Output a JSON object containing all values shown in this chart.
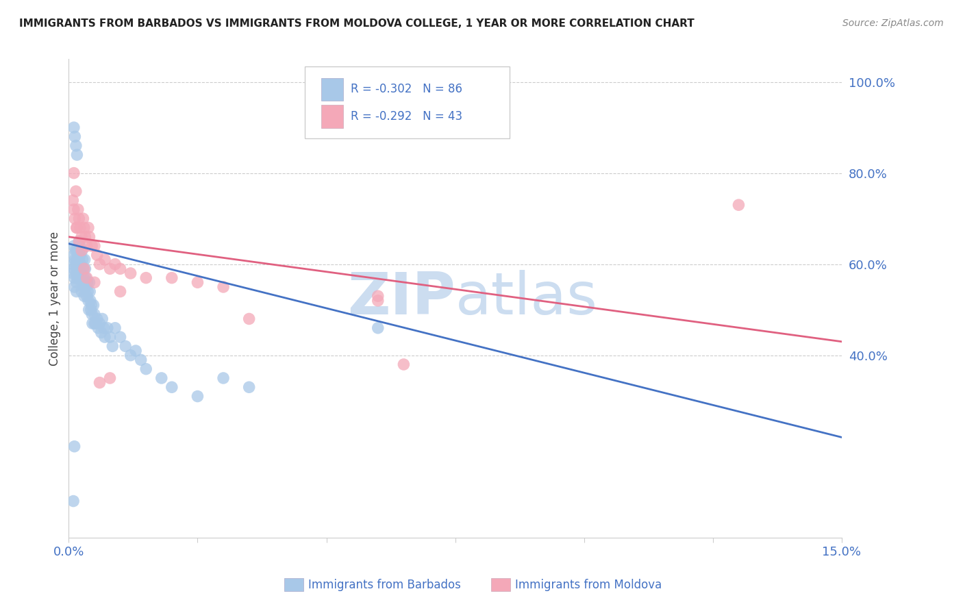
{
  "title": "IMMIGRANTS FROM BARBADOS VS IMMIGRANTS FROM MOLDOVA COLLEGE, 1 YEAR OR MORE CORRELATION CHART",
  "source": "Source: ZipAtlas.com",
  "ylabel": "College, 1 year or more",
  "right_ytick_labels": [
    "100.0%",
    "80.0%",
    "60.0%",
    "40.0%"
  ],
  "right_ytick_positions": [
    1.0,
    0.8,
    0.6,
    0.4
  ],
  "xmin": 0.0,
  "xmax": 0.15,
  "ymin": 0.0,
  "ymax": 1.05,
  "barbados_color": "#a8c8e8",
  "moldova_color": "#f4a8b8",
  "barbados_line_color": "#4472c4",
  "moldova_line_color": "#e06080",
  "watermark_zip": "ZIP",
  "watermark_atlas": "atlas",
  "watermark_color": "#d8e8f4",
  "background_color": "#ffffff",
  "grid_color": "#cccccc",
  "legend_barbados_r": "R = -0.302",
  "legend_barbados_n": "N = 86",
  "legend_moldova_r": "R = -0.292",
  "legend_moldova_n": "N = 43",
  "legend_text_color": "#4472c4",
  "title_color": "#222222",
  "source_color": "#888888",
  "ylabel_color": "#444444",
  "xtick_color": "#4472c4",
  "ytick_color": "#4472c4",
  "barbados_x": [
    0.0008,
    0.0008,
    0.001,
    0.001,
    0.001,
    0.0011,
    0.0011,
    0.0012,
    0.0013,
    0.0014,
    0.0015,
    0.0015,
    0.0015,
    0.0016,
    0.0016,
    0.0017,
    0.0017,
    0.0018,
    0.0018,
    0.0019,
    0.002,
    0.002,
    0.002,
    0.0021,
    0.0021,
    0.0022,
    0.0022,
    0.0023,
    0.0024,
    0.0025,
    0.0025,
    0.0026,
    0.0027,
    0.0028,
    0.0029,
    0.003,
    0.003,
    0.0031,
    0.0032,
    0.0033,
    0.0034,
    0.0035,
    0.0036,
    0.0037,
    0.0038,
    0.0039,
    0.004,
    0.0041,
    0.0042,
    0.0043,
    0.0044,
    0.0045,
    0.0046,
    0.0048,
    0.005,
    0.0052,
    0.0055,
    0.0057,
    0.006,
    0.0063,
    0.0065,
    0.0068,
    0.007,
    0.0075,
    0.008,
    0.0085,
    0.009,
    0.01,
    0.011,
    0.012,
    0.013,
    0.014,
    0.015,
    0.018,
    0.02,
    0.025,
    0.03,
    0.035,
    0.001,
    0.0012,
    0.0014,
    0.0016,
    0.005,
    0.06,
    0.0009,
    0.0011
  ],
  "barbados_y": [
    0.6,
    0.58,
    0.64,
    0.62,
    0.59,
    0.57,
    0.55,
    0.61,
    0.63,
    0.6,
    0.58,
    0.56,
    0.54,
    0.63,
    0.61,
    0.59,
    0.57,
    0.62,
    0.6,
    0.58,
    0.65,
    0.63,
    0.61,
    0.59,
    0.57,
    0.64,
    0.62,
    0.6,
    0.58,
    0.56,
    0.54,
    0.63,
    0.61,
    0.59,
    0.57,
    0.55,
    0.53,
    0.61,
    0.59,
    0.57,
    0.55,
    0.53,
    0.56,
    0.54,
    0.52,
    0.5,
    0.56,
    0.54,
    0.52,
    0.5,
    0.51,
    0.49,
    0.47,
    0.51,
    0.49,
    0.47,
    0.48,
    0.46,
    0.47,
    0.45,
    0.48,
    0.46,
    0.44,
    0.46,
    0.44,
    0.42,
    0.46,
    0.44,
    0.42,
    0.4,
    0.41,
    0.39,
    0.37,
    0.35,
    0.33,
    0.31,
    0.35,
    0.33,
    0.9,
    0.88,
    0.86,
    0.84,
    0.47,
    0.46,
    0.08,
    0.2
  ],
  "moldova_x": [
    0.0008,
    0.001,
    0.0012,
    0.0014,
    0.0016,
    0.0018,
    0.002,
    0.0022,
    0.0025,
    0.0028,
    0.003,
    0.0032,
    0.0035,
    0.0038,
    0.004,
    0.0045,
    0.005,
    0.0055,
    0.006,
    0.007,
    0.008,
    0.009,
    0.01,
    0.012,
    0.015,
    0.02,
    0.025,
    0.03,
    0.035,
    0.06,
    0.065,
    0.13,
    0.001,
    0.0015,
    0.002,
    0.0025,
    0.003,
    0.0035,
    0.005,
    0.006,
    0.008,
    0.01,
    0.06
  ],
  "moldova_y": [
    0.74,
    0.72,
    0.7,
    0.76,
    0.68,
    0.72,
    0.7,
    0.68,
    0.66,
    0.7,
    0.68,
    0.66,
    0.64,
    0.68,
    0.66,
    0.64,
    0.64,
    0.62,
    0.6,
    0.61,
    0.59,
    0.6,
    0.59,
    0.58,
    0.57,
    0.57,
    0.56,
    0.55,
    0.48,
    0.53,
    0.38,
    0.73,
    0.8,
    0.68,
    0.65,
    0.63,
    0.59,
    0.57,
    0.56,
    0.34,
    0.35,
    0.54,
    0.52
  ],
  "barbados_line_x0": 0.0,
  "barbados_line_y0": 0.645,
  "barbados_line_x1": 0.15,
  "barbados_line_y1": 0.22,
  "moldova_line_x0": 0.0,
  "moldova_line_y0": 0.66,
  "moldova_line_x1": 0.15,
  "moldova_line_y1": 0.43
}
